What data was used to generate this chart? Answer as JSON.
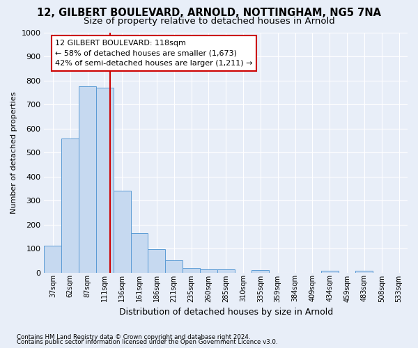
{
  "title1": "12, GILBERT BOULEVARD, ARNOLD, NOTTINGHAM, NG5 7NA",
  "title2": "Size of property relative to detached houses in Arnold",
  "xlabel": "Distribution of detached houses by size in Arnold",
  "ylabel": "Number of detached properties",
  "categories": [
    "37sqm",
    "62sqm",
    "87sqm",
    "111sqm",
    "136sqm",
    "161sqm",
    "186sqm",
    "211sqm",
    "235sqm",
    "260sqm",
    "285sqm",
    "310sqm",
    "335sqm",
    "359sqm",
    "384sqm",
    "409sqm",
    "434sqm",
    "459sqm",
    "483sqm",
    "508sqm",
    "533sqm"
  ],
  "values": [
    112,
    558,
    775,
    770,
    342,
    163,
    97,
    52,
    18,
    13,
    13,
    0,
    10,
    0,
    0,
    0,
    7,
    0,
    7,
    0,
    0
  ],
  "bar_color": "#c6d9f0",
  "bar_edge_color": "#5b9bd5",
  "ylim": [
    0,
    1000
  ],
  "yticks": [
    0,
    100,
    200,
    300,
    400,
    500,
    600,
    700,
    800,
    900,
    1000
  ],
  "vline_x": 3.32,
  "vline_color": "#cc0000",
  "annotation_text": "12 GILBERT BOULEVARD: 118sqm\n← 58% of detached houses are smaller (1,673)\n42% of semi-detached houses are larger (1,211) →",
  "annotation_box_color": "#cc0000",
  "footer1": "Contains HM Land Registry data © Crown copyright and database right 2024.",
  "footer2": "Contains public sector information licensed under the Open Government Licence v3.0.",
  "bg_color": "#e8eef8",
  "grid_color": "#ffffff",
  "title1_fontsize": 10.5,
  "title2_fontsize": 9.5
}
